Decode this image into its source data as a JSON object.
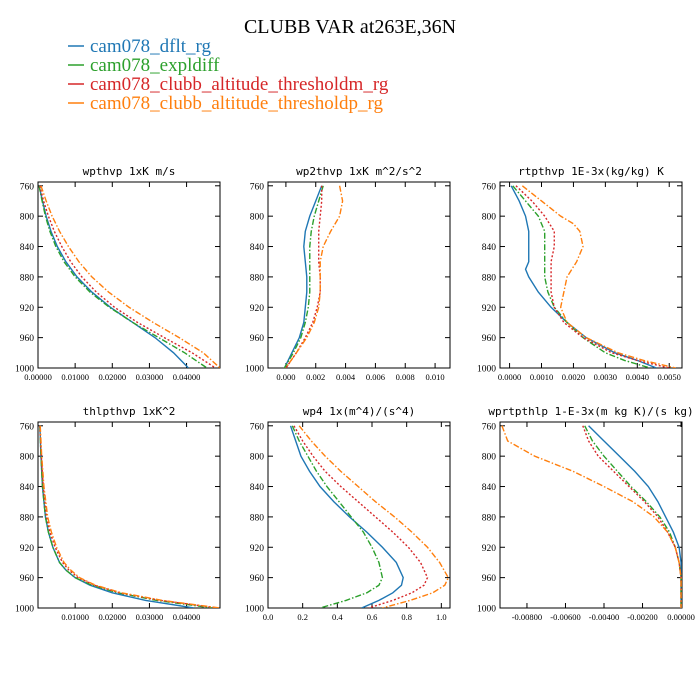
{
  "figure": {
    "title": "CLUBB VAR at263E,36N",
    "legend": [
      {
        "name": "cam078_dflt_rg",
        "color": "#1f77b4",
        "dash": "solid"
      },
      {
        "name": "cam078_expldiff",
        "color": "#2ca02c",
        "dash": "dashdot"
      },
      {
        "name": "cam078_clubb_altitude_thresholdm_rg",
        "color": "#d62728",
        "dash": "dot"
      },
      {
        "name": "cam078_clubb_altitude_thresholdp_rg",
        "color": "#ff7f0e",
        "dash": "dashdot"
      }
    ]
  },
  "chart_data": [
    {
      "type": "line",
      "title": "wpthvp  1xK m/s",
      "xlim": [
        0,
        0.049
      ],
      "ylim": [
        1000,
        755
      ],
      "xticks": [
        0,
        0.01,
        0.02,
        0.03,
        0.04
      ],
      "xtick_labels": [
        "0.00000",
        "0.01000",
        "0.02000",
        "0.03000",
        "0.04000"
      ],
      "yticks": [
        760,
        800,
        840,
        880,
        920,
        960,
        1000
      ],
      "series": [
        {
          "name": "cam078_dflt_rg",
          "y": [
            760,
            780,
            800,
            820,
            840,
            860,
            880,
            900,
            920,
            940,
            960,
            980,
            1000
          ],
          "x": [
            0.0003,
            0.0012,
            0.0022,
            0.0035,
            0.0052,
            0.0075,
            0.0105,
            0.0145,
            0.0195,
            0.0255,
            0.0315,
            0.0365,
            0.0405
          ]
        },
        {
          "name": "cam078_expldiff",
          "y": [
            760,
            780,
            800,
            820,
            840,
            860,
            880,
            900,
            920,
            940,
            960,
            980,
            1000
          ],
          "x": [
            0.0003,
            0.0011,
            0.002,
            0.0032,
            0.0048,
            0.007,
            0.01,
            0.014,
            0.0192,
            0.0255,
            0.0325,
            0.0395,
            0.0455
          ]
        },
        {
          "name": "cam078_clubb_altitude_thresholdm_rg",
          "y": [
            760,
            780,
            800,
            820,
            840,
            860,
            880,
            900,
            920,
            940,
            960,
            980,
            1000
          ],
          "x": [
            0.0005,
            0.0015,
            0.0028,
            0.0044,
            0.0064,
            0.0088,
            0.0118,
            0.0157,
            0.0206,
            0.0268,
            0.034,
            0.0415,
            0.0478
          ]
        },
        {
          "name": "cam078_clubb_altitude_thresholdp_rg",
          "y": [
            760,
            780,
            800,
            820,
            840,
            860,
            880,
            900,
            920,
            940,
            960,
            980,
            1000
          ],
          "x": [
            0.0008,
            0.0022,
            0.0038,
            0.0058,
            0.0082,
            0.011,
            0.0145,
            0.019,
            0.0245,
            0.031,
            0.038,
            0.0445,
            0.049
          ]
        }
      ]
    },
    {
      "type": "line",
      "title": "wp2thvp  1xK m^2/s^2",
      "xlim": [
        -0.0012,
        0.011
      ],
      "ylim": [
        1000,
        755
      ],
      "xticks": [
        0,
        0.002,
        0.004,
        0.006,
        0.008,
        0.01
      ],
      "xtick_labels": [
        "0.000",
        "0.002",
        "0.004",
        "0.006",
        "0.008",
        "0.010"
      ],
      "yticks": [
        760,
        800,
        840,
        880,
        920,
        960,
        1000
      ],
      "series": [
        {
          "name": "cam078_dflt_rg",
          "y": [
            760,
            780,
            800,
            820,
            840,
            860,
            880,
            900,
            920,
            940,
            960,
            980,
            1000
          ],
          "x": [
            0.0024,
            0.002,
            0.0016,
            0.0013,
            0.0012,
            0.0013,
            0.0014,
            0.0014,
            0.0013,
            0.0012,
            0.0009,
            0.0004,
            -0.0001
          ]
        },
        {
          "name": "cam078_expldiff",
          "y": [
            760,
            780,
            800,
            820,
            840,
            860,
            880,
            900,
            920,
            940,
            960,
            980,
            1000
          ],
          "x": [
            0.0025,
            0.0022,
            0.0019,
            0.0017,
            0.0016,
            0.0016,
            0.0016,
            0.0016,
            0.0015,
            0.0013,
            0.001,
            0.0005,
            -0.0001
          ]
        },
        {
          "name": "cam078_clubb_altitude_thresholdm_rg",
          "y": [
            760,
            780,
            800,
            820,
            840,
            860,
            880,
            900,
            920,
            940,
            960,
            980,
            1000
          ],
          "x": [
            0.0024,
            0.0024,
            0.0023,
            0.0022,
            0.0022,
            0.0022,
            0.0023,
            0.0023,
            0.0021,
            0.0018,
            0.0013,
            0.0007,
            0.0
          ]
        },
        {
          "name": "cam078_clubb_altitude_thresholdp_rg",
          "y": [
            760,
            780,
            800,
            820,
            840,
            860,
            880,
            900,
            920,
            940,
            960,
            980,
            1000
          ],
          "x": [
            0.0036,
            0.0038,
            0.0036,
            0.003,
            0.0025,
            0.0023,
            0.0023,
            0.0023,
            0.0022,
            0.0019,
            0.0014,
            0.0007,
            0.0
          ]
        }
      ]
    },
    {
      "type": "line",
      "title": "rtpthvp  1E-3x(kg/kg) K",
      "xlim": [
        -0.0003,
        0.0054
      ],
      "ylim": [
        1000,
        755
      ],
      "xticks": [
        0,
        0.001,
        0.002,
        0.003,
        0.004,
        0.005
      ],
      "xtick_labels": [
        "0.0000",
        "0.0010",
        "0.0020",
        "0.0030",
        "0.0040",
        "0.0050"
      ],
      "yticks": [
        760,
        800,
        840,
        880,
        920,
        960,
        1000
      ],
      "series": [
        {
          "name": "cam078_dflt_rg",
          "y": [
            760,
            780,
            800,
            820,
            840,
            860,
            870,
            880,
            900,
            920,
            940,
            960,
            980,
            990,
            1000
          ],
          "x": [
            5e-05,
            0.0003,
            0.0005,
            0.0006,
            0.0006,
            0.0006,
            0.0005,
            0.0006,
            0.0009,
            0.0013,
            0.0018,
            0.0024,
            0.0033,
            0.004,
            0.0046
          ]
        },
        {
          "name": "cam078_expldiff",
          "y": [
            760,
            780,
            800,
            820,
            840,
            860,
            880,
            900,
            920,
            940,
            960,
            980,
            990,
            1000
          ],
          "x": [
            0.0001,
            0.0005,
            0.0009,
            0.0011,
            0.0011,
            0.0011,
            0.0011,
            0.0012,
            0.0014,
            0.0018,
            0.0023,
            0.003,
            0.0036,
            0.0044
          ]
        },
        {
          "name": "cam078_clubb_altitude_thresholdm_rg",
          "y": [
            760,
            780,
            800,
            820,
            840,
            860,
            880,
            900,
            920,
            940,
            960,
            980,
            990,
            1000
          ],
          "x": [
            0.0002,
            0.0007,
            0.0011,
            0.0014,
            0.0014,
            0.0013,
            0.0013,
            0.0013,
            0.0014,
            0.0017,
            0.0023,
            0.0032,
            0.004,
            0.005
          ]
        },
        {
          "name": "cam078_clubb_altitude_thresholdp_rg",
          "y": [
            760,
            780,
            800,
            810,
            820,
            840,
            860,
            880,
            900,
            920,
            940,
            960,
            980,
            990,
            1000
          ],
          "x": [
            0.0004,
            0.001,
            0.0016,
            0.002,
            0.0022,
            0.0023,
            0.0021,
            0.0018,
            0.0017,
            0.0016,
            0.0018,
            0.0024,
            0.0034,
            0.0042,
            0.0052
          ]
        }
      ]
    },
    {
      "type": "line",
      "title": "thlpthvp  1xK^2",
      "xlim": [
        0,
        0.049
      ],
      "ylim": [
        1000,
        755
      ],
      "xticks": [
        0.01,
        0.02,
        0.03,
        0.04
      ],
      "xtick_labels": [
        "0.01000",
        "0.02000",
        "0.03000",
        "0.04000"
      ],
      "yticks": [
        760,
        800,
        840,
        880,
        920,
        960,
        1000
      ],
      "series": [
        {
          "name": "cam078_dflt_rg",
          "y": [
            760,
            800,
            840,
            880,
            900,
            920,
            940,
            950,
            960,
            970,
            980,
            990,
            1000
          ],
          "x": [
            0.0005,
            0.0008,
            0.0012,
            0.002,
            0.0028,
            0.004,
            0.0058,
            0.0075,
            0.01,
            0.014,
            0.02,
            0.029,
            0.042
          ]
        },
        {
          "name": "cam078_expldiff",
          "y": [
            760,
            800,
            840,
            880,
            900,
            920,
            940,
            950,
            960,
            970,
            980,
            990,
            1000
          ],
          "x": [
            0.0005,
            0.0008,
            0.0012,
            0.002,
            0.0028,
            0.004,
            0.0058,
            0.0075,
            0.01,
            0.0145,
            0.0215,
            0.032,
            0.047
          ]
        },
        {
          "name": "cam078_clubb_altitude_thresholdm_rg",
          "y": [
            760,
            800,
            840,
            880,
            900,
            920,
            940,
            950,
            960,
            970,
            980,
            990,
            1000
          ],
          "x": [
            0.0005,
            0.0009,
            0.0014,
            0.0023,
            0.0032,
            0.0046,
            0.0066,
            0.0083,
            0.0108,
            0.0152,
            0.022,
            0.033,
            0.0485
          ]
        },
        {
          "name": "cam078_clubb_altitude_thresholdp_rg",
          "y": [
            760,
            800,
            840,
            880,
            900,
            920,
            940,
            950,
            960,
            970,
            980,
            990,
            1000
          ],
          "x": [
            0.0006,
            0.001,
            0.0016,
            0.0026,
            0.0036,
            0.005,
            0.007,
            0.0088,
            0.0112,
            0.0155,
            0.0225,
            0.0335,
            0.049
          ]
        }
      ]
    },
    {
      "type": "line",
      "title": "wp4  1x(m^4)/(s^4)",
      "xlim": [
        0,
        1.05
      ],
      "ylim": [
        1000,
        755
      ],
      "xticks": [
        0,
        0.2,
        0.4,
        0.6,
        0.8,
        1.0
      ],
      "xtick_labels": [
        "0.0",
        "0.2",
        "0.4",
        "0.6",
        "0.8",
        "1.0"
      ],
      "yticks": [
        760,
        800,
        840,
        880,
        920,
        960,
        1000
      ],
      "series": [
        {
          "name": "cam078_dflt_rg",
          "y": [
            760,
            780,
            800,
            820,
            840,
            860,
            880,
            900,
            920,
            940,
            960,
            970,
            980,
            990,
            1000
          ],
          "x": [
            0.13,
            0.16,
            0.19,
            0.24,
            0.3,
            0.38,
            0.47,
            0.57,
            0.66,
            0.74,
            0.78,
            0.77,
            0.72,
            0.64,
            0.54
          ]
        },
        {
          "name": "cam078_expldiff",
          "y": [
            760,
            780,
            800,
            820,
            840,
            860,
            880,
            900,
            920,
            940,
            960,
            970,
            980,
            990,
            1000
          ],
          "x": [
            0.14,
            0.18,
            0.23,
            0.28,
            0.34,
            0.41,
            0.48,
            0.55,
            0.6,
            0.64,
            0.66,
            0.64,
            0.57,
            0.45,
            0.3
          ]
        },
        {
          "name": "cam078_clubb_altitude_thresholdm_rg",
          "y": [
            760,
            780,
            800,
            820,
            840,
            860,
            880,
            900,
            920,
            940,
            960,
            970,
            980,
            990,
            1000
          ],
          "x": [
            0.15,
            0.2,
            0.26,
            0.33,
            0.42,
            0.52,
            0.62,
            0.72,
            0.81,
            0.88,
            0.92,
            0.9,
            0.83,
            0.72,
            0.58
          ]
        },
        {
          "name": "cam078_clubb_altitude_thresholdp_rg",
          "y": [
            760,
            780,
            800,
            820,
            840,
            860,
            880,
            900,
            920,
            940,
            960,
            970,
            980,
            990,
            1000
          ],
          "x": [
            0.18,
            0.25,
            0.33,
            0.42,
            0.52,
            0.62,
            0.73,
            0.83,
            0.92,
            0.99,
            1.04,
            1.02,
            0.95,
            0.82,
            0.66
          ]
        }
      ]
    },
    {
      "type": "line",
      "title": "wprtpthlp  1-E-3x(m kg K)/(s kg)",
      "xlim": [
        -0.0094,
        5e-05
      ],
      "ylim": [
        1000,
        755
      ],
      "xticks": [
        -0.008,
        -0.006,
        -0.004,
        -0.002,
        0
      ],
      "xtick_labels": [
        "-0.00800",
        "-0.00600",
        "-0.00400",
        "-0.00200",
        "0.00000"
      ],
      "yticks": [
        760,
        800,
        840,
        880,
        920,
        960,
        1000
      ],
      "series": [
        {
          "name": "cam078_dflt_rg",
          "y": [
            760,
            780,
            800,
            820,
            840,
            860,
            880,
            900,
            920,
            940,
            960,
            980,
            1000
          ],
          "x": [
            -0.0048,
            -0.004,
            -0.0032,
            -0.0024,
            -0.0017,
            -0.0012,
            -0.0008,
            -0.0004,
            -0.0001,
            0.0,
            0.0,
            0.0,
            0.0
          ]
        },
        {
          "name": "cam078_expldiff",
          "y": [
            760,
            780,
            800,
            820,
            840,
            860,
            880,
            900,
            920,
            940,
            960,
            980,
            1000
          ],
          "x": [
            -0.005,
            -0.0046,
            -0.004,
            -0.0033,
            -0.0026,
            -0.0018,
            -0.0011,
            -0.0006,
            -0.0003,
            -0.0001,
            0.0,
            0.0,
            0.0
          ]
        },
        {
          "name": "cam078_clubb_altitude_thresholdm_rg",
          "y": [
            760,
            780,
            800,
            820,
            840,
            860,
            880,
            900,
            920,
            940,
            960,
            980,
            1000
          ],
          "x": [
            -0.0051,
            -0.0048,
            -0.0043,
            -0.0035,
            -0.0027,
            -0.0019,
            -0.0012,
            -0.0007,
            -0.0003,
            -0.0001,
            0.0,
            0.0,
            0.0
          ]
        },
        {
          "name": "cam078_clubb_altitude_thresholdp_rg",
          "y": [
            760,
            780,
            800,
            820,
            840,
            860,
            880,
            900,
            920,
            940,
            960,
            980,
            1000
          ],
          "x": [
            -0.0093,
            -0.009,
            -0.0076,
            -0.0056,
            -0.004,
            -0.0025,
            -0.0014,
            -0.0007,
            -0.0003,
            -0.0001,
            0.0,
            0.0,
            0.0
          ]
        }
      ]
    }
  ]
}
